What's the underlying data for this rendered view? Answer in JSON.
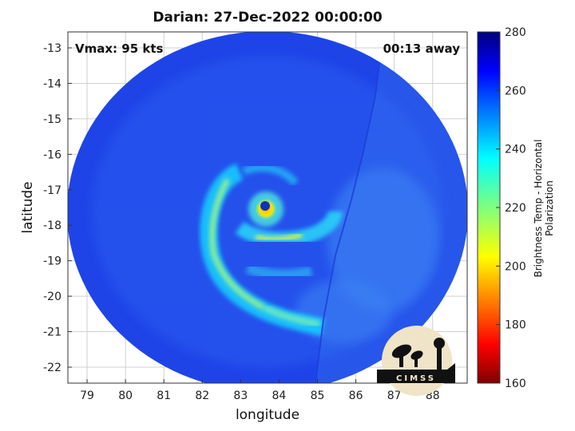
{
  "chart_data": {
    "type": "heatmap",
    "title": "Darian: 27-Dec-2022 00:00:00",
    "xlabel": "longitude",
    "ylabel": "latitude",
    "xlim": [
      78.5,
      88.9
    ],
    "ylim": [
      -22.45,
      -12.55
    ],
    "xticks": [
      79,
      80,
      81,
      82,
      83,
      84,
      85,
      86,
      87,
      88
    ],
    "yticks": [
      -13,
      -14,
      -15,
      -16,
      -17,
      -18,
      -19,
      -20,
      -21,
      -22
    ],
    "colorbar": {
      "label": "Brightness Temp - Horizontal Polarization",
      "range": [
        160,
        280
      ],
      "ticks": [
        280,
        260,
        240,
        220,
        200,
        180,
        160
      ],
      "colormap": "jet"
    },
    "storm_center": {
      "lon": 83.7,
      "lat": -17.55
    },
    "annotations": {
      "vmax": "Vmax: 95 kts",
      "time_offset": "00:13 away"
    },
    "logo_text": "CIMSS"
  }
}
